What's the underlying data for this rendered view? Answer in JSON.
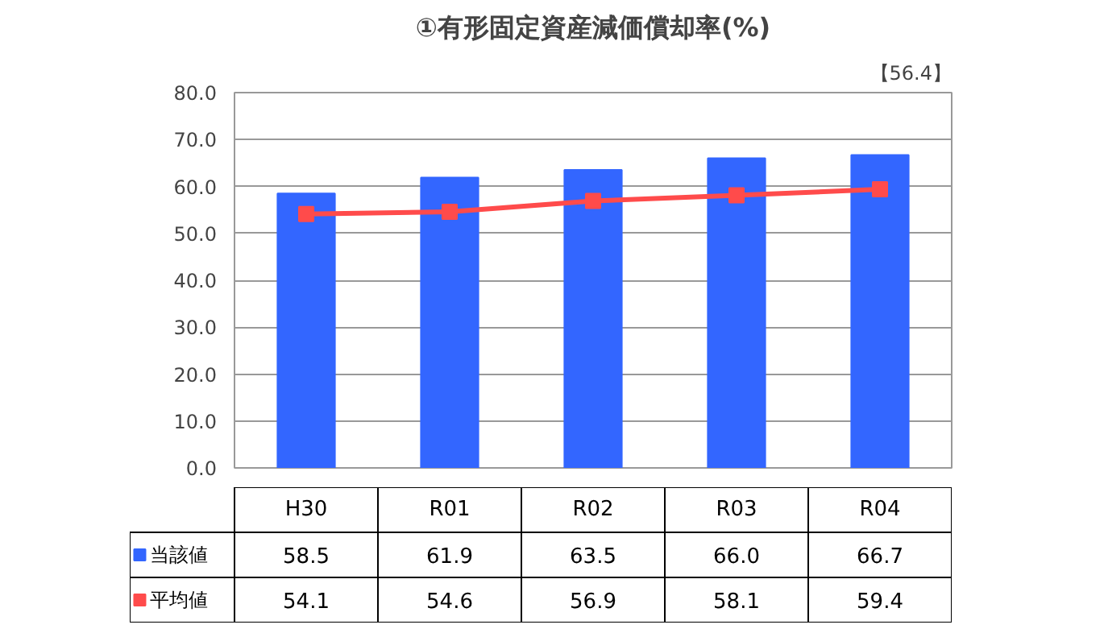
{
  "chart_data": {
    "type": "bar",
    "title": "①有形固定資産減価償却率(%)",
    "annotations": [
      "【56.4】"
    ],
    "categories": [
      "H30",
      "R01",
      "R02",
      "R03",
      "R04"
    ],
    "series": [
      {
        "name": "当該値",
        "color": "#3366ff",
        "values": [
          58.5,
          61.9,
          63.5,
          66.0,
          66.7
        ],
        "value_labels": [
          "58.5",
          "61.9",
          "63.5",
          "66.0",
          "66.7"
        ]
      },
      {
        "name": "平均値",
        "type": "line",
        "color": "#ff4b4b",
        "marker": "square",
        "values": [
          54.1,
          54.6,
          56.9,
          58.1,
          59.4
        ],
        "value_labels": [
          "54.1",
          "54.6",
          "56.9",
          "58.1",
          "59.4"
        ]
      }
    ],
    "ylim": [
      0,
      80
    ],
    "yticks": [
      {
        "value": 0,
        "label": "0.0"
      },
      {
        "value": 10,
        "label": "10.0"
      },
      {
        "value": 20,
        "label": "20.0"
      },
      {
        "value": 30,
        "label": "30.0"
      },
      {
        "value": 40,
        "label": "40.0"
      },
      {
        "value": 50,
        "label": "50.0"
      },
      {
        "value": 60,
        "label": "60.0"
      },
      {
        "value": 70,
        "label": "70.0"
      },
      {
        "value": 80,
        "label": "80.0"
      }
    ],
    "grid": "y",
    "legend": "bottom"
  }
}
